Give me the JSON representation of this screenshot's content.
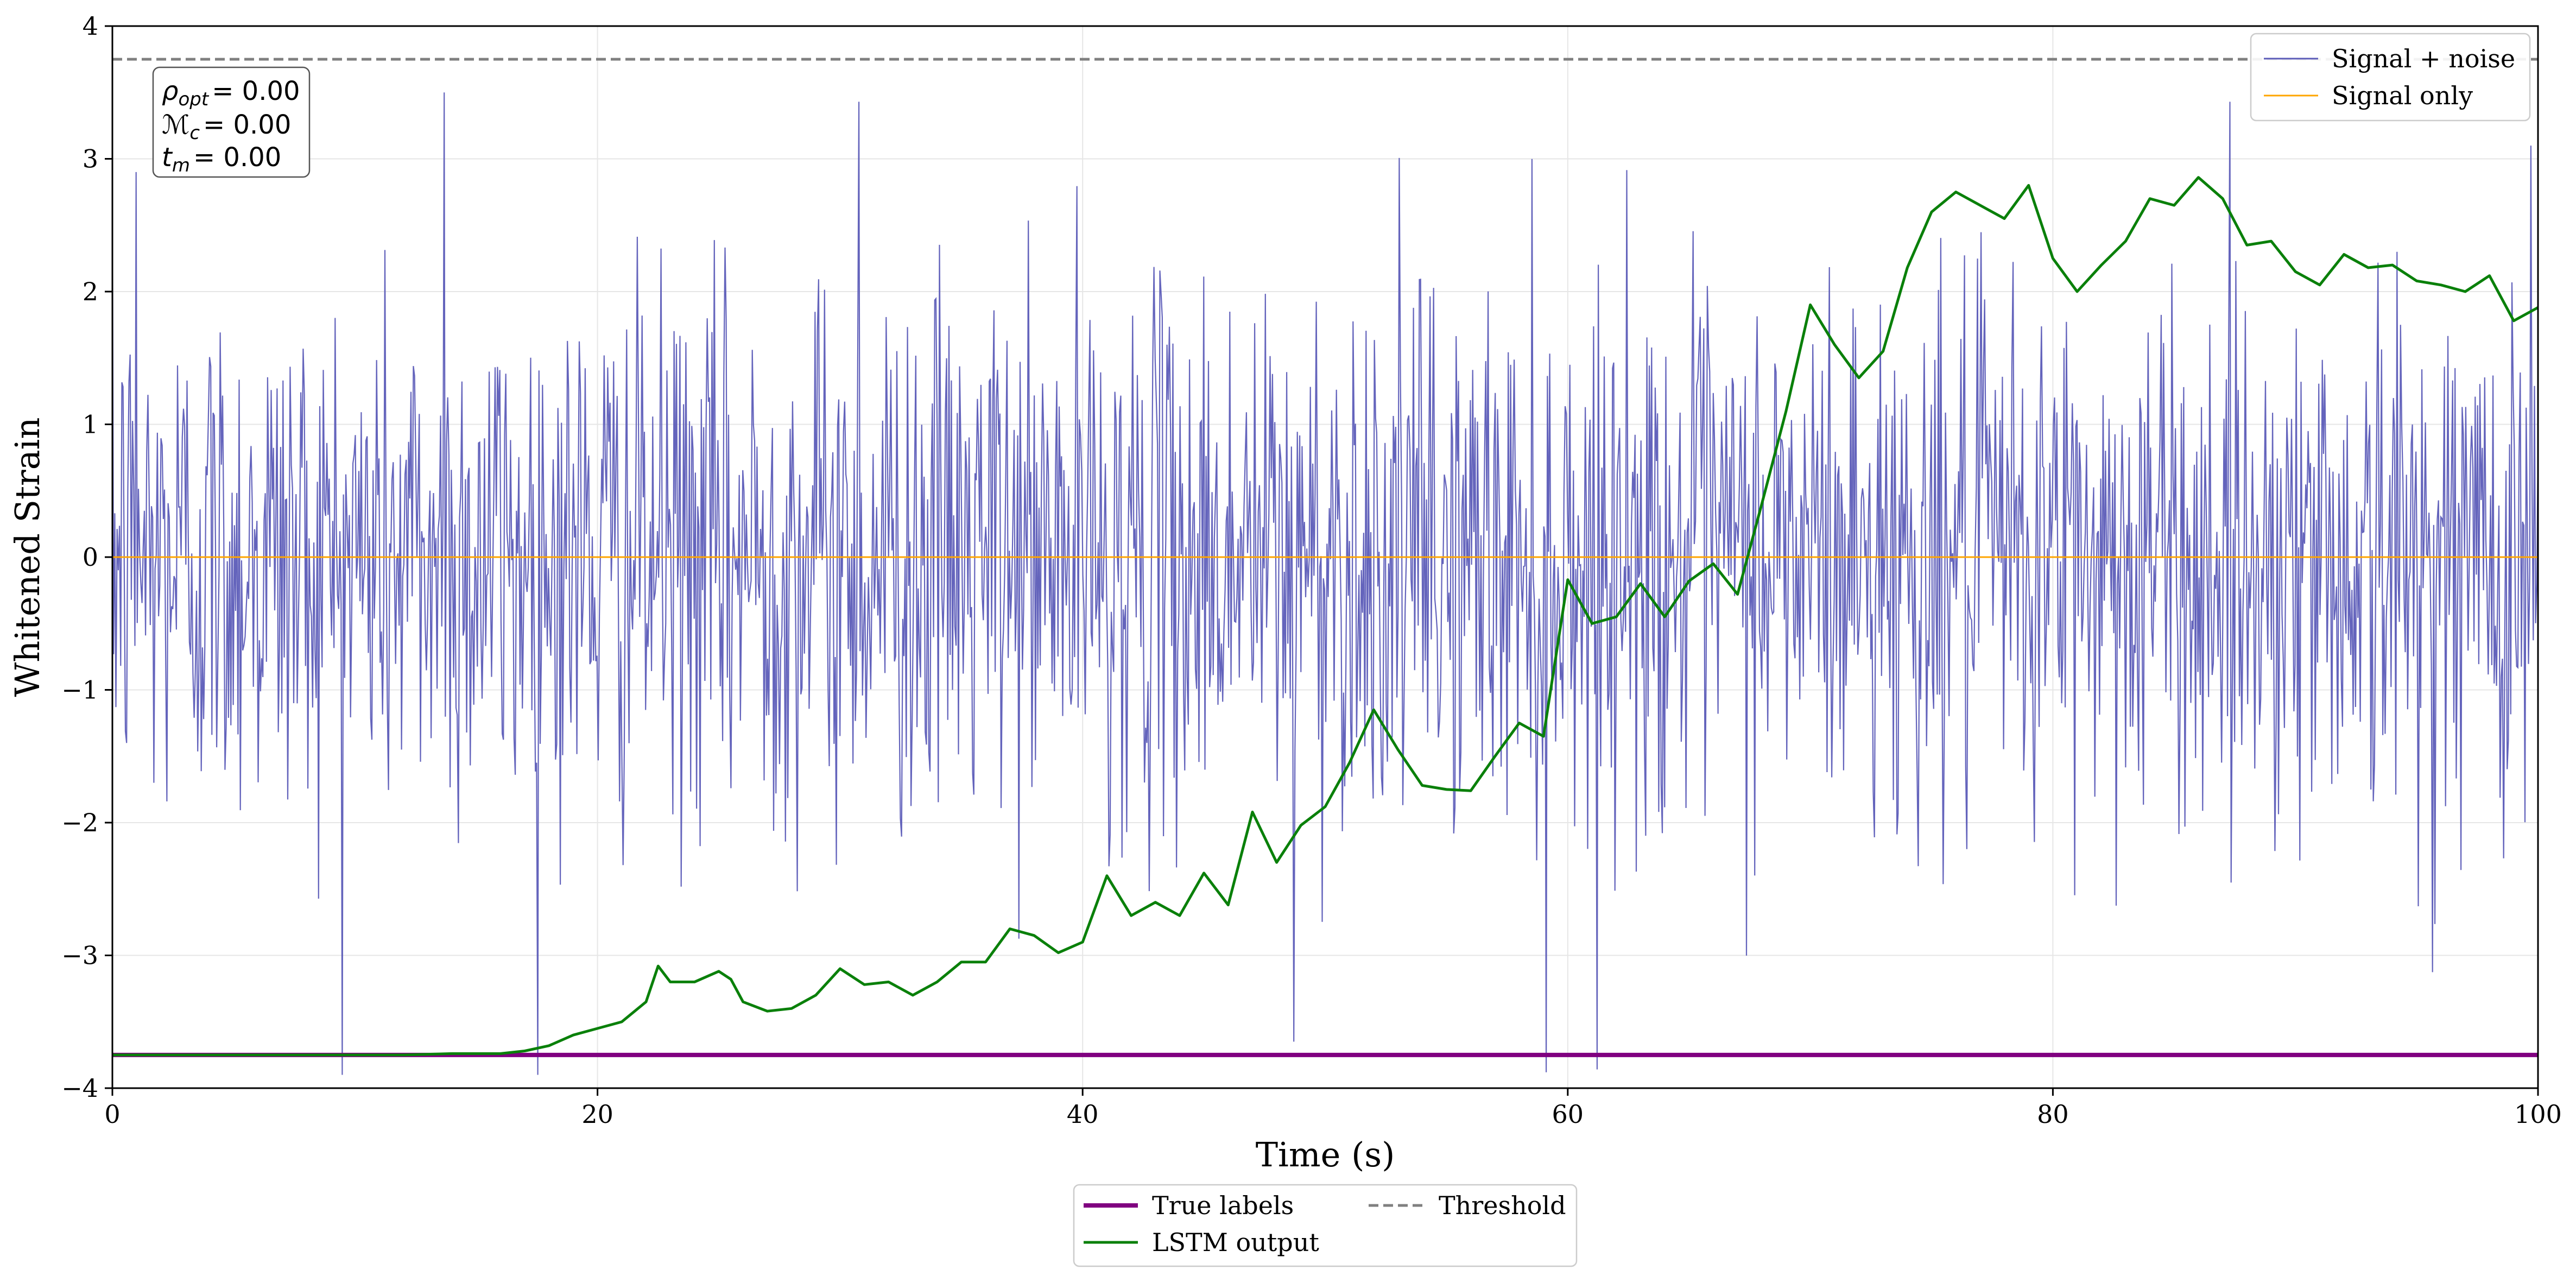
{
  "chart_data": {
    "type": "line",
    "title": "",
    "xlabel": "Time (s)",
    "ylabel": "Whitened Strain",
    "xlim": [
      0,
      100
    ],
    "ylim": [
      -4,
      4
    ],
    "xticks": [
      0,
      20,
      40,
      60,
      80,
      100
    ],
    "xtick_labels": [
      "0",
      "20",
      "40",
      "60",
      "80",
      "100"
    ],
    "yticks": [
      -4,
      -3,
      -2,
      -1,
      0,
      1,
      2,
      3,
      4
    ],
    "ytick_labels": [
      "−4",
      "−3",
      "−2",
      "−1",
      "0",
      "1",
      "2",
      "3",
      "4"
    ],
    "grid": true,
    "series": [
      {
        "name": "Signal + noise",
        "color": "#5c5cb8",
        "description": "white noise, approx. zero mean, unit variance, sampled densely over 0–100 s",
        "noise_std": 1.0,
        "noise_range": [
          -3.9,
          3.5
        ],
        "n_samples": 2048,
        "notable_points": [
          {
            "x": 1.0,
            "y": 2.9
          },
          {
            "x": 13.7,
            "y": 3.5
          },
          {
            "x": 30.8,
            "y": 3.43
          },
          {
            "x": 48.7,
            "y": -3.65
          },
          {
            "x": 59.1,
            "y": -3.88
          },
          {
            "x": 99.7,
            "y": 3.1
          }
        ]
      },
      {
        "name": "Signal only",
        "color": "#ffa500",
        "x": [
          0,
          100
        ],
        "y": [
          0,
          0
        ]
      },
      {
        "name": "True labels",
        "color": "#800080",
        "x": [
          0,
          100
        ],
        "y": [
          -3.75,
          -3.75
        ]
      },
      {
        "name": "LSTM output",
        "color": "#0a800a",
        "x": [
          0,
          5,
          10,
          12,
          14,
          16,
          17,
          18,
          19,
          20,
          21,
          22,
          22.5,
          23,
          24,
          25,
          25.5,
          26,
          27,
          28,
          29,
          30,
          31,
          32,
          33,
          34,
          35,
          36,
          37,
          38,
          39,
          40,
          41,
          42,
          43,
          44,
          45,
          46,
          47,
          48,
          49,
          50,
          51,
          52,
          53,
          54,
          55,
          56,
          57,
          58,
          59,
          60,
          61,
          62,
          63,
          64,
          65,
          66,
          67,
          68,
          69,
          70,
          71,
          72,
          73,
          74,
          75,
          76,
          77,
          78,
          79,
          80,
          81,
          82,
          83,
          84,
          85,
          86,
          87,
          88,
          89,
          90,
          91,
          92,
          93,
          94,
          95,
          96,
          97,
          98,
          99,
          100
        ],
        "y": [
          -3.75,
          -3.75,
          -3.75,
          -3.75,
          -3.74,
          -3.74,
          -3.72,
          -3.68,
          -3.6,
          -3.55,
          -3.5,
          -3.35,
          -3.08,
          -3.2,
          -3.2,
          -3.12,
          -3.18,
          -3.35,
          -3.42,
          -3.4,
          -3.3,
          -3.1,
          -3.22,
          -3.2,
          -3.3,
          -3.2,
          -3.05,
          -3.05,
          -2.8,
          -2.85,
          -2.98,
          -2.9,
          -2.4,
          -2.7,
          -2.6,
          -2.7,
          -2.38,
          -2.62,
          -1.92,
          -2.3,
          -2.02,
          -1.88,
          -1.55,
          -1.15,
          -1.45,
          -1.72,
          -1.75,
          -1.76,
          -1.5,
          -1.25,
          -1.35,
          -0.17,
          -0.5,
          -0.45,
          -0.2,
          -0.45,
          -0.18,
          -0.05,
          -0.28,
          0.4,
          1.1,
          1.9,
          1.6,
          1.35,
          1.55,
          2.18,
          2.6,
          2.75,
          2.65,
          2.55,
          2.8,
          2.25,
          2.0,
          2.2,
          2.38,
          2.7,
          2.65,
          2.86,
          2.7,
          2.35,
          2.38,
          2.15,
          2.05,
          2.28,
          2.18,
          2.2,
          2.08,
          2.05,
          2.0,
          2.12,
          1.78,
          1.88
        ]
      },
      {
        "name": "Threshold",
        "color": "#808080",
        "linestyle": "dashed",
        "x": [
          0,
          100
        ],
        "y": [
          3.75,
          3.75
        ]
      }
    ],
    "legends": {
      "upper_right": [
        "Signal + noise",
        "Signal only"
      ],
      "below_axes": [
        "True labels",
        "LSTM output",
        "Threshold"
      ]
    },
    "annotation": {
      "position": "top-left",
      "lines": [
        {
          "symbol": "ρ",
          "subscript": "opt",
          "text": "= 0.00"
        },
        {
          "symbol": "ℳ",
          "subscript": "c",
          "text": "= 0.00"
        },
        {
          "symbol": "t",
          "subscript": "m",
          "text": "= 0.00"
        }
      ]
    }
  }
}
